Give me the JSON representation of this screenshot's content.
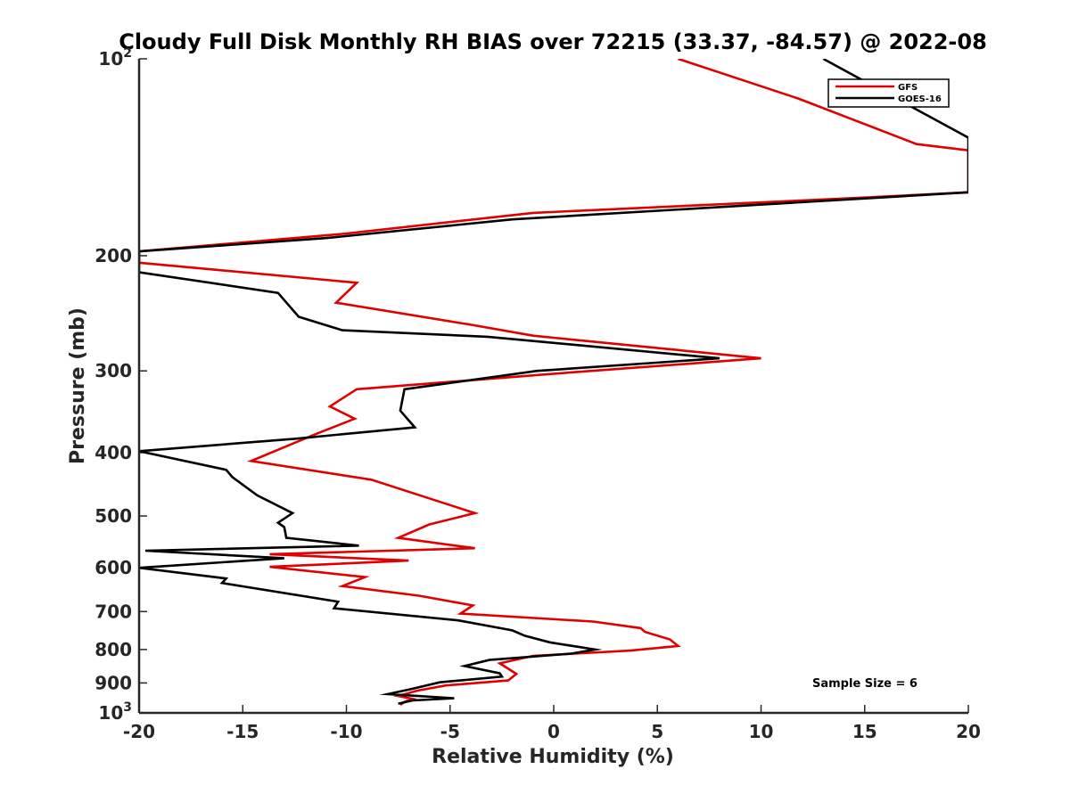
{
  "chart_data": {
    "type": "line",
    "title": "Cloudy Full Disk Monthly RH BIAS over 72215 (33.37, -84.57) @ 2022-08",
    "xlabel": "Relative Humidity (%)",
    "ylabel": "Pressure (mb)",
    "xlim": [
      -20,
      20
    ],
    "ylim": [
      100,
      1000
    ],
    "y_scale": "log",
    "y_reversed": true,
    "x_ticks": [
      -20,
      -15,
      -10,
      -5,
      0,
      5,
      10,
      15,
      20
    ],
    "x_tick_labels": [
      "-20",
      "-15",
      "-10",
      "-5",
      "0",
      "5",
      "10",
      "15",
      "20"
    ],
    "y_ticks": [
      {
        "value": 100,
        "base": "10",
        "exp": "2"
      },
      {
        "value": 200,
        "label": "200"
      },
      {
        "value": 300,
        "label": "300"
      },
      {
        "value": 400,
        "label": "400"
      },
      {
        "value": 500,
        "label": "500"
      },
      {
        "value": 600,
        "label": "600"
      },
      {
        "value": 700,
        "label": "700"
      },
      {
        "value": 800,
        "label": "800"
      },
      {
        "value": 900,
        "label": "900"
      },
      {
        "value": 1000,
        "base": "10",
        "exp": "3"
      }
    ],
    "legend": {
      "position": "top-right",
      "entries": [
        "GFS",
        "GOES-16"
      ]
    },
    "grid": false,
    "annotation": "Sample Size = 6",
    "series": [
      {
        "name": "GFS",
        "color": "#e00000",
        "points": [
          [
            6,
            100
          ],
          [
            11.8,
            115
          ],
          [
            17.5,
            135
          ],
          [
            20,
            138
          ],
          [
            20,
            160
          ],
          [
            15,
            163
          ],
          [
            -1,
            172
          ],
          [
            -10,
            185
          ],
          [
            -20,
            197
          ],
          [
            -20,
            205
          ],
          [
            -9.5,
            220
          ],
          [
            -10.5,
            236
          ],
          [
            -4,
            255
          ],
          [
            -1,
            265
          ],
          [
            10,
            287
          ],
          [
            0,
            303
          ],
          [
            -9.5,
            320
          ],
          [
            -10.8,
            340
          ],
          [
            -9.6,
            355
          ],
          [
            -11.5,
            375
          ],
          [
            -14.6,
            412
          ],
          [
            -8.8,
            440
          ],
          [
            -6,
            470
          ],
          [
            -3.8,
            495
          ],
          [
            -6,
            515
          ],
          [
            -7.5,
            540
          ],
          [
            -3.8,
            560
          ],
          [
            -13.7,
            572
          ],
          [
            -7,
            585
          ],
          [
            -13.7,
            598
          ],
          [
            -9.1,
            620
          ],
          [
            -10.2,
            640
          ],
          [
            -6.5,
            662
          ],
          [
            -3.9,
            685
          ],
          [
            -4.5,
            705
          ],
          [
            1.9,
            725
          ],
          [
            4.2,
            742
          ],
          [
            4.4,
            752
          ],
          [
            5.6,
            772
          ],
          [
            6.0,
            790
          ],
          [
            3.7,
            803
          ],
          [
            -1.0,
            818
          ],
          [
            -2.6,
            840
          ],
          [
            -1.8,
            872
          ],
          [
            -2.2,
            892
          ],
          [
            -5.2,
            908
          ],
          [
            -6.6,
            925
          ],
          [
            -7.5,
            942
          ],
          [
            -6.8,
            952
          ],
          [
            -7.2,
            962
          ],
          [
            -7.4,
            972
          ]
        ]
      },
      {
        "name": "GOES-16",
        "color": "#000000",
        "points": [
          [
            13,
            100
          ],
          [
            20,
            132
          ],
          [
            20,
            160
          ],
          [
            -2,
            176
          ],
          [
            -11,
            188
          ],
          [
            -20,
            197
          ],
          [
            -20,
            212
          ],
          [
            -13.3,
            228
          ],
          [
            -12.3,
            248
          ],
          [
            -10.2,
            260
          ],
          [
            -3.2,
            266
          ],
          [
            8,
            287
          ],
          [
            -0.8,
            300
          ],
          [
            -7.2,
            320
          ],
          [
            -7.4,
            345
          ],
          [
            -6.7,
            366
          ],
          [
            -12.5,
            381
          ],
          [
            -20,
            398
          ],
          [
            -15.8,
            425
          ],
          [
            -15.5,
            436
          ],
          [
            -14.3,
            465
          ],
          [
            -12.6,
            495
          ],
          [
            -13.3,
            512
          ],
          [
            -13,
            520
          ],
          [
            -12.9,
            540
          ],
          [
            -9.4,
            555
          ],
          [
            -19.7,
            565
          ],
          [
            -13,
            580
          ],
          [
            -20,
            600
          ],
          [
            -15.8,
            623
          ],
          [
            -16,
            633
          ],
          [
            -10.4,
            676
          ],
          [
            -10.6,
            692
          ],
          [
            -4.6,
            722
          ],
          [
            -2.0,
            748
          ],
          [
            -1.4,
            762
          ],
          [
            -0.2,
            780
          ],
          [
            2.0,
            800
          ],
          [
            0.8,
            812
          ],
          [
            -3.1,
            830
          ],
          [
            -4.3,
            848
          ],
          [
            -2.6,
            870
          ],
          [
            -2.5,
            880
          ],
          [
            -5.5,
            898
          ],
          [
            -6.9,
            920
          ],
          [
            -8.0,
            936
          ],
          [
            -4.8,
            950
          ],
          [
            -6.8,
            957
          ],
          [
            -7.5,
            968
          ]
        ]
      }
    ]
  }
}
